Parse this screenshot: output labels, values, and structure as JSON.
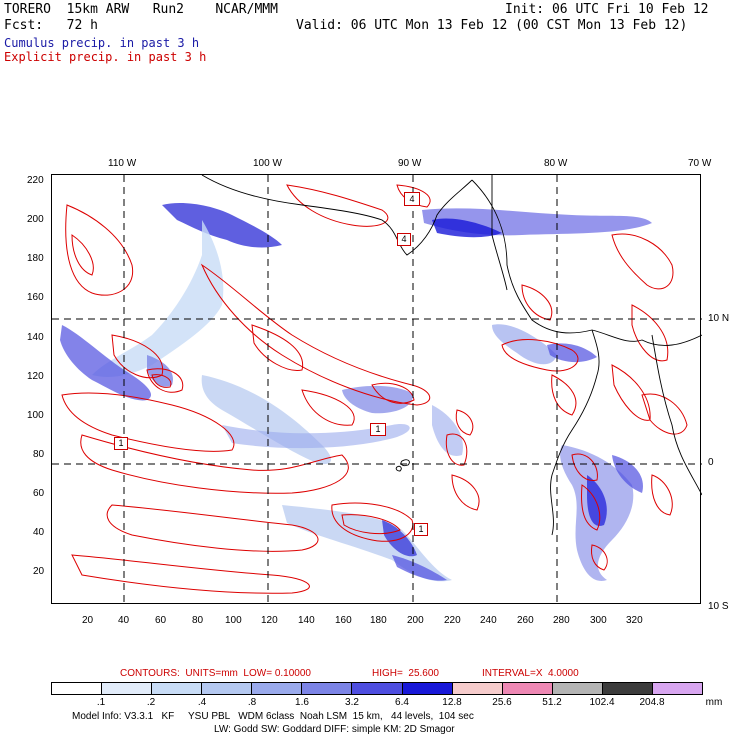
{
  "header": {
    "model": "TORERO  15km ARW   Run2    NCAR/MMM",
    "init": "Init: 06 UTC Fri 10 Feb 12",
    "fcst": "Fcst:   72 h",
    "valid": "Valid: 06 UTC Mon 13 Feb 12 (00 CST Mon 13 Feb 12)",
    "legend_cumulus": "Cumulus precip. in past 3 h",
    "legend_explicit": "Explicit precip. in past 3 h"
  },
  "map": {
    "x_ticks": [
      "20",
      "40",
      "60",
      "80",
      "100",
      "120",
      "140",
      "160",
      "180",
      "200",
      "220",
      "240",
      "260",
      "280",
      "300",
      "320"
    ],
    "y_ticks": [
      "220",
      "200",
      "180",
      "160",
      "140",
      "120",
      "100",
      "80",
      "60",
      "40",
      "20"
    ],
    "lon_labels": [
      "110 W",
      "100 W",
      "90 W",
      "80 W",
      "70 W"
    ],
    "lat_labels": [
      "10 N",
      "0",
      "10 S"
    ],
    "box_labels": [
      "4",
      "4",
      "1",
      "1",
      "1"
    ],
    "colors": {
      "cumulus": "#2a2ad6",
      "explicit": "#dd0000",
      "coast": "#000000",
      "grid": "#000000"
    }
  },
  "contours_line": {
    "contours": "CONTOURS:  UNITS=mm  LOW= 0.10000",
    "high": "HIGH=  25.600",
    "interval": "INTERVAL=X  4.0000"
  },
  "colorbar": {
    "labels": [
      ".1",
      ".2",
      ".4",
      ".8",
      "1.6",
      "3.2",
      "6.4",
      "12.8",
      "25.6",
      "51.2",
      "102.4",
      "204.8"
    ],
    "unit": "mm",
    "colors": [
      "#ffffff",
      "#e2ecfa",
      "#c8dcf6",
      "#b4c8f0",
      "#9aaaec",
      "#7c84e6",
      "#4e4ee0",
      "#1818d8",
      "#f6cccc",
      "#ee88b4",
      "#b4b4b4",
      "#3c3c3c",
      "#d8a6f0"
    ]
  },
  "footer": {
    "line1": "Model Info: V3.3.1   KF     YSU PBL   WDM 6class  Noah LSM  15 km,   44 levels,  104 sec",
    "line2": "LW: Godd SW: Goddard DIFF: simple KM: 2D Smagor"
  }
}
